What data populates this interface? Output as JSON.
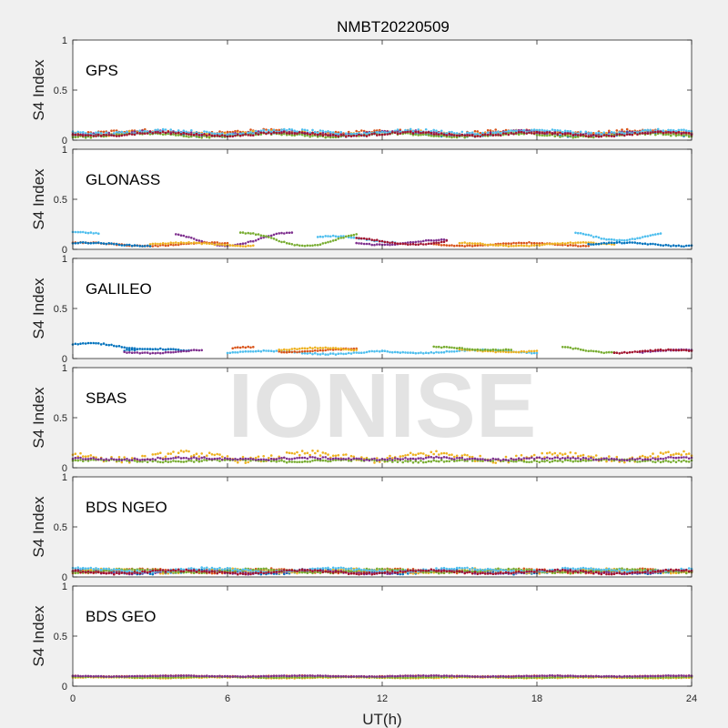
{
  "figure": {
    "title": "NMBT20220509",
    "xlabel": "UT(h)",
    "watermark": "IONISE"
  },
  "chart_data": [
    {
      "type": "scatter",
      "panel": "GPS",
      "label": "GPS",
      "ylabel": "S4 Index",
      "xlabel": "UT(h)",
      "xlim": [
        0,
        24
      ],
      "ylim": [
        0,
        1
      ],
      "xticks": [
        "0",
        "6",
        "12",
        "18",
        "24"
      ],
      "yticks": [
        "0",
        "0.5",
        "1"
      ],
      "grid": false,
      "legend": "none",
      "series": [
        {
          "color": "#0072BD",
          "segments": [
            {
              "x0": 0,
              "x1": 24,
              "base": 0.06,
              "amp": 0.02,
              "jitter": 0.03
            }
          ]
        },
        {
          "color": "#D95319",
          "segments": [
            {
              "x0": 0,
              "x1": 24,
              "base": 0.08,
              "amp": 0.02,
              "jitter": 0.03
            }
          ]
        },
        {
          "color": "#EDB120",
          "segments": [
            {
              "x0": 0,
              "x1": 24,
              "base": 0.07,
              "amp": 0.02,
              "jitter": 0.03
            }
          ]
        },
        {
          "color": "#7E2F8E",
          "segments": [
            {
              "x0": 0,
              "x1": 24,
              "base": 0.07,
              "amp": 0.02,
              "jitter": 0.03
            }
          ]
        },
        {
          "color": "#77AC30",
          "segments": [
            {
              "x0": 0,
              "x1": 24,
              "base": 0.05,
              "amp": 0.02,
              "jitter": 0.02
            }
          ]
        },
        {
          "color": "#4DBEEE",
          "segments": [
            {
              "x0": 0,
              "x1": 24,
              "base": 0.08,
              "amp": 0.02,
              "jitter": 0.03
            }
          ]
        },
        {
          "color": "#A2142F",
          "segments": [
            {
              "x0": 0,
              "x1": 24,
              "base": 0.06,
              "amp": 0.02,
              "jitter": 0.02
            }
          ]
        }
      ]
    },
    {
      "type": "scatter",
      "panel": "GLONASS",
      "label": "GLONASS",
      "ylabel": "S4 Index",
      "xlabel": "UT(h)",
      "xlim": [
        0,
        24
      ],
      "ylim": [
        0,
        1
      ],
      "xticks": [
        "0",
        "6",
        "12",
        "18",
        "24"
      ],
      "yticks": [
        "0",
        "0.5",
        "1"
      ],
      "grid": false,
      "legend": "none",
      "series": [
        {
          "color": "#4DBEEE",
          "segments": [
            {
              "x0": 0,
              "x1": 1,
              "base": 0.15,
              "amp": 0.03,
              "jitter": 0.01
            },
            {
              "x0": 9.5,
              "x1": 12.5,
              "base": 0.1,
              "amp": 0.04,
              "jitter": 0.01
            },
            {
              "x0": 19.5,
              "x1": 22.8,
              "base": 0.14,
              "amp": 0.06,
              "jitter": 0.01
            }
          ]
        },
        {
          "color": "#7E2F8E",
          "segments": [
            {
              "x0": 4,
              "x1": 8.5,
              "base": 0.1,
              "amp": 0.08,
              "jitter": 0.01
            },
            {
              "x0": 11,
              "x1": 14.5,
              "base": 0.07,
              "amp": 0.03,
              "jitter": 0.01
            }
          ]
        },
        {
          "color": "#77AC30",
          "segments": [
            {
              "x0": 6.5,
              "x1": 11,
              "base": 0.1,
              "amp": 0.08,
              "jitter": 0.01
            }
          ]
        },
        {
          "color": "#D95319",
          "segments": [
            {
              "x0": 0,
              "x1": 6,
              "base": 0.05,
              "amp": 0.02,
              "jitter": 0.01
            },
            {
              "x0": 14,
              "x1": 20,
              "base": 0.05,
              "amp": 0.02,
              "jitter": 0.01
            }
          ]
        },
        {
          "color": "#EDB120",
          "segments": [
            {
              "x0": 3,
              "x1": 7,
              "base": 0.05,
              "amp": 0.02,
              "jitter": 0.01
            },
            {
              "x0": 15,
              "x1": 21,
              "base": 0.05,
              "amp": 0.02,
              "jitter": 0.01
            }
          ]
        },
        {
          "color": "#0072BD",
          "segments": [
            {
              "x0": 0,
              "x1": 3,
              "base": 0.05,
              "amp": 0.02,
              "jitter": 0.01
            },
            {
              "x0": 20,
              "x1": 24,
              "base": 0.05,
              "amp": 0.02,
              "jitter": 0.01
            }
          ]
        },
        {
          "color": "#A2142F",
          "segments": [
            {
              "x0": 11,
              "x1": 14.5,
              "base": 0.08,
              "amp": 0.04,
              "jitter": 0.01
            }
          ]
        }
      ]
    },
    {
      "type": "scatter",
      "panel": "GALILEO",
      "label": "GALILEO",
      "ylabel": "S4 Index",
      "xlabel": "UT(h)",
      "xlim": [
        0,
        24
      ],
      "ylim": [
        0,
        1
      ],
      "xticks": [
        "0",
        "6",
        "12",
        "18",
        "24"
      ],
      "yticks": [
        "0",
        "0.5",
        "1"
      ],
      "grid": false,
      "legend": "none",
      "series": [
        {
          "color": "#0072BD",
          "segments": [
            {
              "x0": 0,
              "x1": 2.5,
              "base": 0.12,
              "amp": 0.04,
              "jitter": 0.01
            },
            {
              "x0": 2,
              "x1": 4.5,
              "base": 0.08,
              "amp": 0.02,
              "jitter": 0.01
            }
          ]
        },
        {
          "color": "#4DBEEE",
          "segments": [
            {
              "x0": 6,
              "x1": 12,
              "base": 0.06,
              "amp": 0.02,
              "jitter": 0.01
            },
            {
              "x0": 12,
              "x1": 18,
              "base": 0.07,
              "amp": 0.02,
              "jitter": 0.01
            }
          ]
        },
        {
          "color": "#D95319",
          "segments": [
            {
              "x0": 6.2,
              "x1": 7,
              "base": 0.09,
              "amp": 0.03,
              "jitter": 0.01
            },
            {
              "x0": 8,
              "x1": 11,
              "base": 0.08,
              "amp": 0.02,
              "jitter": 0.01
            }
          ]
        },
        {
          "color": "#EDB120",
          "segments": [
            {
              "x0": 8,
              "x1": 11,
              "base": 0.09,
              "amp": 0.02,
              "jitter": 0.01
            },
            {
              "x0": 15,
              "x1": 18,
              "base": 0.08,
              "amp": 0.02,
              "jitter": 0.01
            }
          ]
        },
        {
          "color": "#77AC30",
          "segments": [
            {
              "x0": 14,
              "x1": 17,
              "base": 0.1,
              "amp": 0.02,
              "jitter": 0.01
            },
            {
              "x0": 19,
              "x1": 21,
              "base": 0.09,
              "amp": 0.04,
              "jitter": 0.01
            }
          ]
        },
        {
          "color": "#7E2F8E",
          "segments": [
            {
              "x0": 2,
              "x1": 5,
              "base": 0.07,
              "amp": 0.02,
              "jitter": 0.01
            },
            {
              "x0": 22,
              "x1": 24,
              "base": 0.07,
              "amp": 0.02,
              "jitter": 0.01
            }
          ]
        },
        {
          "color": "#A2142F",
          "segments": [
            {
              "x0": 21,
              "x1": 24,
              "base": 0.07,
              "amp": 0.02,
              "jitter": 0.01
            }
          ]
        }
      ]
    },
    {
      "type": "scatter",
      "panel": "SBAS",
      "label": "SBAS",
      "ylabel": "S4 Index",
      "xlabel": "UT(h)",
      "xlim": [
        0,
        24
      ],
      "ylim": [
        0,
        1
      ],
      "xticks": [
        "0",
        "6",
        "12",
        "18",
        "24"
      ],
      "yticks": [
        "0",
        "0.5",
        "1"
      ],
      "grid": false,
      "legend": "none",
      "series": [
        {
          "color": "#EDB120",
          "segments": [
            {
              "x0": 0,
              "x1": 24,
              "base": 0.11,
              "amp": 0.04,
              "jitter": 0.06
            }
          ]
        },
        {
          "color": "#77AC30",
          "segments": [
            {
              "x0": 0,
              "x1": 24,
              "base": 0.07,
              "amp": 0.01,
              "jitter": 0.02
            }
          ]
        },
        {
          "color": "#7E2F8E",
          "segments": [
            {
              "x0": 0,
              "x1": 24,
              "base": 0.09,
              "amp": 0.01,
              "jitter": 0.02
            }
          ]
        }
      ]
    },
    {
      "type": "scatter",
      "panel": "BDS NGEO",
      "label": "BDS NGEO",
      "ylabel": "S4 Index",
      "xlabel": "UT(h)",
      "xlim": [
        0,
        24
      ],
      "ylim": [
        0,
        1
      ],
      "xticks": [
        "0",
        "6",
        "12",
        "18",
        "24"
      ],
      "yticks": [
        "0",
        "0.5",
        "1"
      ],
      "grid": false,
      "legend": "none",
      "series": [
        {
          "color": "#0072BD",
          "segments": [
            {
              "x0": 0,
              "x1": 24,
              "base": 0.05,
              "amp": 0.02,
              "jitter": 0.02
            }
          ]
        },
        {
          "color": "#D95319",
          "segments": [
            {
              "x0": 0,
              "x1": 24,
              "base": 0.06,
              "amp": 0.02,
              "jitter": 0.02
            }
          ]
        },
        {
          "color": "#EDB120",
          "segments": [
            {
              "x0": 0,
              "x1": 24,
              "base": 0.06,
              "amp": 0.02,
              "jitter": 0.02
            }
          ]
        },
        {
          "color": "#7E2F8E",
          "segments": [
            {
              "x0": 0,
              "x1": 24,
              "base": 0.05,
              "amp": 0.02,
              "jitter": 0.02
            }
          ]
        },
        {
          "color": "#77AC30",
          "segments": [
            {
              "x0": 0,
              "x1": 24,
              "base": 0.06,
              "amp": 0.02,
              "jitter": 0.02
            }
          ]
        },
        {
          "color": "#4DBEEE",
          "segments": [
            {
              "x0": 0,
              "x1": 24,
              "base": 0.07,
              "amp": 0.02,
              "jitter": 0.02
            }
          ]
        },
        {
          "color": "#A2142F",
          "segments": [
            {
              "x0": 0,
              "x1": 24,
              "base": 0.05,
              "amp": 0.02,
              "jitter": 0.02
            }
          ]
        }
      ]
    },
    {
      "type": "scatter",
      "panel": "BDS GEO",
      "label": "BDS GEO",
      "ylabel": "S4 Index",
      "xlabel": "UT(h)",
      "xlim": [
        0,
        24
      ],
      "ylim": [
        0,
        1
      ],
      "xticks": [
        "0",
        "6",
        "12",
        "18",
        "24"
      ],
      "yticks": [
        "0",
        "0.5",
        "1"
      ],
      "grid": false,
      "legend": "none",
      "series": [
        {
          "color": "#EDB120",
          "segments": [
            {
              "x0": 0,
              "x1": 24,
              "base": 0.085,
              "amp": 0.005,
              "jitter": 0.006
            }
          ]
        },
        {
          "color": "#D95319",
          "segments": [
            {
              "x0": 0,
              "x1": 24,
              "base": 0.1,
              "amp": 0.005,
              "jitter": 0.006
            }
          ]
        },
        {
          "color": "#77AC30",
          "segments": [
            {
              "x0": 0,
              "x1": 24,
              "base": 0.09,
              "amp": 0.005,
              "jitter": 0.006
            }
          ]
        },
        {
          "color": "#7E2F8E",
          "segments": [
            {
              "x0": 0,
              "x1": 24,
              "base": 0.1,
              "amp": 0.005,
              "jitter": 0.006
            }
          ]
        }
      ]
    }
  ]
}
